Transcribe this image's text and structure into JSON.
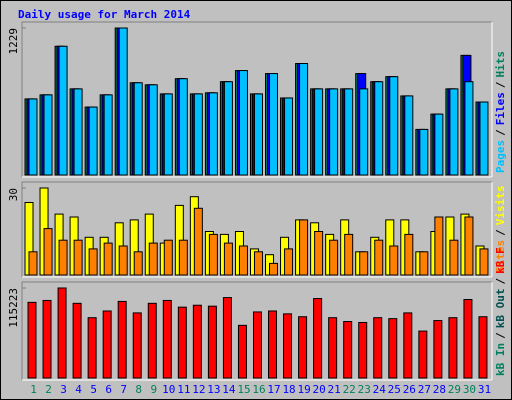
{
  "chart_data": [
    {
      "type": "bar",
      "title": "Daily usage for March 2014",
      "categories": [
        "1",
        "2",
        "3",
        "4",
        "5",
        "6",
        "7",
        "8",
        "9",
        "10",
        "11",
        "12",
        "13",
        "14",
        "15",
        "16",
        "17",
        "18",
        "19",
        "20",
        "21",
        "22",
        "23",
        "24",
        "25",
        "26",
        "27",
        "28",
        "29",
        "30",
        "31"
      ],
      "category_colors": [
        "#00805c",
        "#00805c",
        "#0000ff",
        "#0000ff",
        "#0000ff",
        "#0000ff",
        "#0000ff",
        "#00805c",
        "#00805c",
        "#0000ff",
        "#0000ff",
        "#0000ff",
        "#0000ff",
        "#0000ff",
        "#00805c",
        "#00805c",
        "#0000ff",
        "#0000ff",
        "#0000ff",
        "#0000ff",
        "#0000ff",
        "#00805c",
        "#00805c",
        "#0000ff",
        "#0000ff",
        "#0000ff",
        "#0000ff",
        "#0000ff",
        "#00805c",
        "#00805c",
        "#0000ff"
      ],
      "legend_separator": "/",
      "ylim": [
        0,
        1229
      ],
      "yticks": [
        1229
      ],
      "series": [
        {
          "name": "Pages",
          "color": "#00c0ff",
          "values": [
            636,
            670,
            1076,
            720,
            568,
            670,
            1229,
            771,
            754,
            678,
            805,
            678,
            687,
            780,
            873,
            678,
            848,
            644,
            932,
            720,
            720,
            720,
            720,
            780,
            822,
            661,
            381,
            509,
            720,
            780,
            610
          ]
        },
        {
          "name": "Files",
          "color": "#0000ff",
          "values": [
            636,
            670,
            1076,
            720,
            568,
            670,
            1229,
            771,
            754,
            678,
            805,
            678,
            687,
            780,
            873,
            678,
            848,
            644,
            932,
            720,
            720,
            720,
            848,
            780,
            822,
            661,
            381,
            509,
            720,
            1000,
            610
          ]
        },
        {
          "name": "Hits",
          "color": "#00805c",
          "values": [
            636,
            670,
            1076,
            720,
            568,
            670,
            1229,
            771,
            754,
            678,
            805,
            678,
            687,
            780,
            873,
            678,
            848,
            644,
            932,
            720,
            720,
            720,
            848,
            780,
            822,
            661,
            381,
            509,
            720,
            1000,
            610
          ]
        }
      ]
    },
    {
      "type": "bar",
      "legend_separator": "/",
      "ylim": [
        0,
        30
      ],
      "yticks": [
        30
      ],
      "series": [
        {
          "name": "Sites",
          "color": "#ff8000",
          "values": [
            8,
            16,
            12,
            12,
            9,
            11,
            10,
            8,
            11,
            12,
            12,
            23,
            14,
            11,
            10,
            8,
            4,
            9,
            19,
            15,
            12,
            14,
            8,
            12,
            10,
            14,
            8,
            20,
            12,
            20,
            9
          ]
        },
        {
          "name": "Visits",
          "color": "#ffff00",
          "values": [
            25,
            30,
            21,
            20,
            13,
            13,
            18,
            19,
            21,
            11,
            24,
            27,
            15,
            14,
            15,
            9,
            7,
            13,
            19,
            18,
            14,
            19,
            8,
            13,
            19,
            19,
            8,
            15,
            20,
            21,
            10
          ]
        }
      ]
    },
    {
      "type": "bar",
      "legend_separator": "/",
      "ylim": [
        0,
        115223
      ],
      "yticks": [
        115223
      ],
      "series": [
        {
          "name": "kB F",
          "color": "#ff0000",
          "values": [
            96836,
            99287,
            115223,
            95611,
            77224,
            85804,
            98062,
            83353,
            95611,
            99287,
            90708,
            93159,
            91934,
            102966,
            67418,
            84579,
            85804,
            82127,
            78450,
            101740,
            77224,
            72321,
            71095,
            77224,
            75998,
            83353,
            60063,
            73547,
            77224,
            100514,
            78450
          ]
        }
      ],
      "other_legend": [
        {
          "name": "kB In",
          "color": "#00805c"
        },
        {
          "name": "kB Out",
          "color": "#005050"
        }
      ]
    }
  ]
}
